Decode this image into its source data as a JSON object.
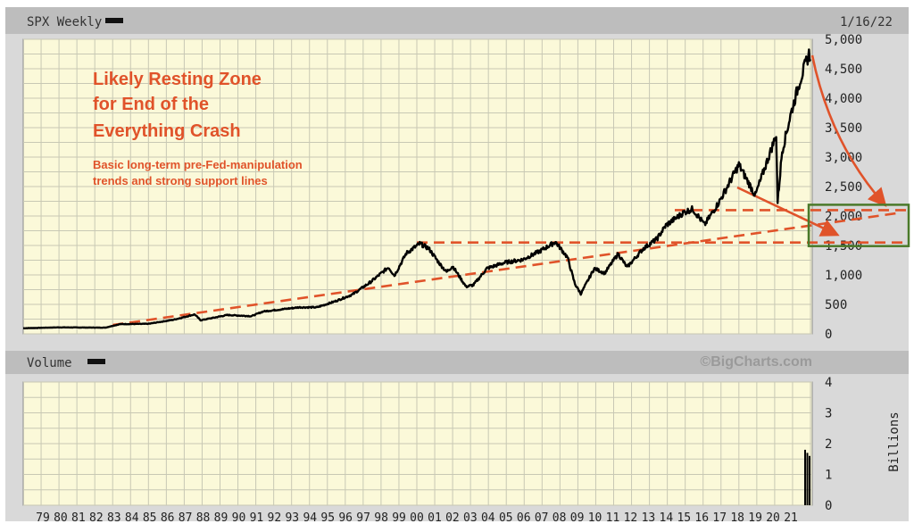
{
  "header": {
    "title": "SPX Weekly",
    "date": "1/16/22"
  },
  "volume_header": {
    "title": "Volume",
    "brand": "©BigCharts.com"
  },
  "annotation": {
    "title_lines": [
      "Likely Resting Zone",
      "for End of the",
      "Everything Crash"
    ],
    "subtitle_lines": [
      "Basic   long-term pre-Fed-manipulation",
      "trends and strong support lines"
    ]
  },
  "colors": {
    "plot_bg": "#fbf9d9",
    "grid": "#c8c8b4",
    "line": "#000000",
    "annotation": "#e0532a",
    "zone_box": "#4a7a2a",
    "frame": "#cccccc"
  },
  "chart_data": [
    {
      "type": "line",
      "title": "SPX Weekly",
      "ylim": [
        0,
        5000
      ],
      "y_ticks": [
        "0",
        "500",
        "1,000",
        "1,500",
        "2,000",
        "2,500",
        "3,000",
        "3,500",
        "4,000",
        "4,500",
        "5,000"
      ],
      "x_tick_labels": [
        "79",
        "80",
        "81",
        "82",
        "83",
        "84",
        "85",
        "86",
        "87",
        "88",
        "89",
        "90",
        "91",
        "92",
        "93",
        "94",
        "95",
        "96",
        "97",
        "98",
        "99",
        "00",
        "01",
        "02",
        "03",
        "04",
        "05",
        "06",
        "07",
        "08",
        "09",
        "10",
        "11",
        "12",
        "13",
        "14",
        "15",
        "16",
        "17",
        "18",
        "19",
        "20",
        "21"
      ],
      "series": [
        {
          "values_by_date": [
            [
              "1978-01",
              95
            ],
            [
              "1980-01",
              110
            ],
            [
              "1982-08",
              105
            ],
            [
              "1983-06",
              165
            ],
            [
              "1985-01",
              170
            ],
            [
              "1986-06",
              240
            ],
            [
              "1987-08",
              330
            ],
            [
              "1987-12",
              230
            ],
            [
              "1989-06",
              320
            ],
            [
              "1990-10",
              300
            ],
            [
              "1991-06",
              380
            ],
            [
              "1993-06",
              450
            ],
            [
              "1994-06",
              450
            ],
            [
              "1995-06",
              550
            ],
            [
              "1996-06",
              670
            ],
            [
              "1997-06",
              880
            ],
            [
              "1998-06",
              1130
            ],
            [
              "1998-10",
              990
            ],
            [
              "1999-06",
              1370
            ],
            [
              "2000-03",
              1530
            ],
            [
              "2000-09",
              1450
            ],
            [
              "2001-04",
              1200
            ],
            [
              "2001-09",
              1050
            ],
            [
              "2002-01",
              1150
            ],
            [
              "2002-10",
              800
            ],
            [
              "2003-03",
              830
            ],
            [
              "2003-12",
              1110
            ],
            [
              "2004-12",
              1210
            ],
            [
              "2005-12",
              1260
            ],
            [
              "2006-12",
              1410
            ],
            [
              "2007-10",
              1560
            ],
            [
              "2008-06",
              1300
            ],
            [
              "2008-11",
              850
            ],
            [
              "2009-03",
              680
            ],
            [
              "2009-12",
              1110
            ],
            [
              "2010-07",
              1030
            ],
            [
              "2011-04",
              1360
            ],
            [
              "2011-10",
              1130
            ],
            [
              "2012-09",
              1450
            ],
            [
              "2013-06",
              1610
            ],
            [
              "2013-12",
              1840
            ],
            [
              "2014-12",
              2060
            ],
            [
              "2015-06",
              2120
            ],
            [
              "2016-02",
              1850
            ],
            [
              "2016-12",
              2250
            ],
            [
              "2018-01",
              2870
            ],
            [
              "2018-12",
              2350
            ],
            [
              "2019-12",
              3230
            ],
            [
              "2020-02",
              3380
            ],
            [
              "2020-03",
              2240
            ],
            [
              "2020-06",
              3100
            ],
            [
              "2020-12",
              3750
            ],
            [
              "2021-06",
              4300
            ],
            [
              "2021-12",
              4750
            ],
            [
              "2022-01",
              4660
            ]
          ]
        }
      ],
      "annotations": {
        "trend_line": [
          [
            "1983-01",
            150
          ],
          [
            "2022-01",
            1600
          ]
        ],
        "support_lines": [
          {
            "from": [
              "2000-01",
              1550
            ],
            "to": [
              "2022-01",
              1550
            ]
          },
          {
            "from": [
              "2014-06",
              2100
            ],
            "to": [
              "2022-01",
              2100
            ]
          }
        ],
        "zone": {
          "y_range": [
            1550,
            2100
          ]
        }
      }
    },
    {
      "type": "bar",
      "title": "Volume",
      "ylabel": "Billions",
      "ylim": [
        0,
        4
      ],
      "y_ticks": [
        "0",
        "1",
        "2",
        "3",
        "4"
      ],
      "values_by_date": [
        [
          "2021-11",
          1.8
        ],
        [
          "2021-12",
          1.7
        ],
        [
          "2022-01",
          1.6
        ]
      ]
    }
  ]
}
